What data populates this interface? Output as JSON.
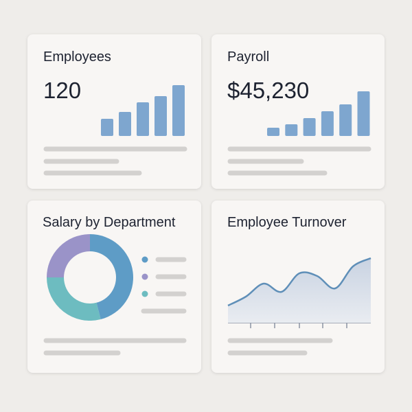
{
  "cards": [
    {
      "title": "Employees",
      "value": "120",
      "chart": {
        "type": "bar",
        "color": "#7ea6cf",
        "values": [
          25,
          35,
          49,
          58,
          74
        ]
      }
    },
    {
      "title": "Payroll",
      "value": "$45,230",
      "chart": {
        "type": "bar",
        "color": "#7ea6cf",
        "values": [
          12,
          17,
          26,
          36,
          46,
          65
        ]
      }
    },
    {
      "title": "Salary by Department",
      "chart": {
        "type": "pie",
        "values": [
          46,
          29,
          25
        ],
        "colors": [
          "#5e9cc6",
          "#6dbcc0",
          "#9a93c8"
        ]
      }
    },
    {
      "title": "Employee Turnover",
      "chart": {
        "type": "line",
        "color": "#5f8fb8",
        "values": [
          25,
          38,
          57,
          45,
          72,
          68,
          50,
          82,
          94
        ]
      }
    }
  ]
}
